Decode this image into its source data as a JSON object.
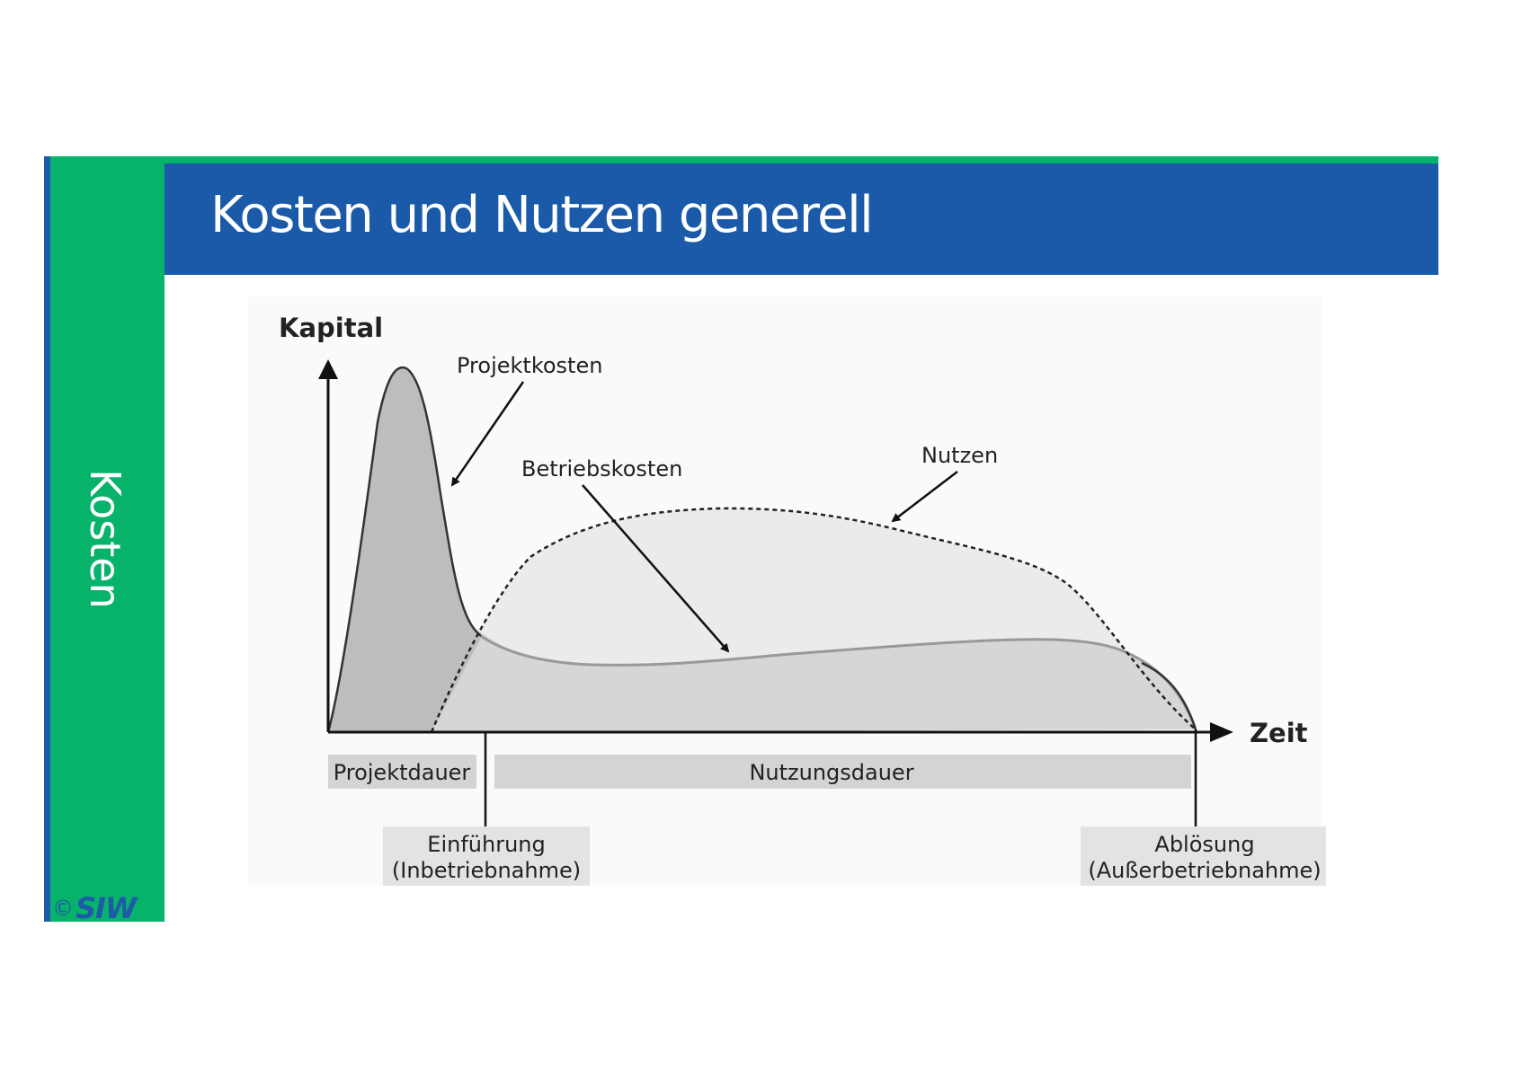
{
  "slide": {
    "title": "Kosten und Nutzen generell",
    "section": "Kosten",
    "logo_copyright": "©",
    "logo_text": "SIW",
    "colors": {
      "green": "#07b36b",
      "blue": "#1b5aa8"
    }
  },
  "diagram": {
    "y_axis_label": "Kapital",
    "x_axis_label": "Zeit",
    "curve_labels": {
      "projektkosten": "Projektkosten",
      "betriebskosten": "Betriebskosten",
      "nutzen": "Nutzen"
    },
    "phases": {
      "projektdauer": "Projektdauer",
      "nutzungsdauer": "Nutzungsdauer"
    },
    "milestones": {
      "einfuehrung_line1": "Einführung",
      "einfuehrung_line2": "(Inbetriebnahme)",
      "abloesung_line1": "Ablösung",
      "abloesung_line2": "(Außerbetriebnahme)"
    }
  }
}
